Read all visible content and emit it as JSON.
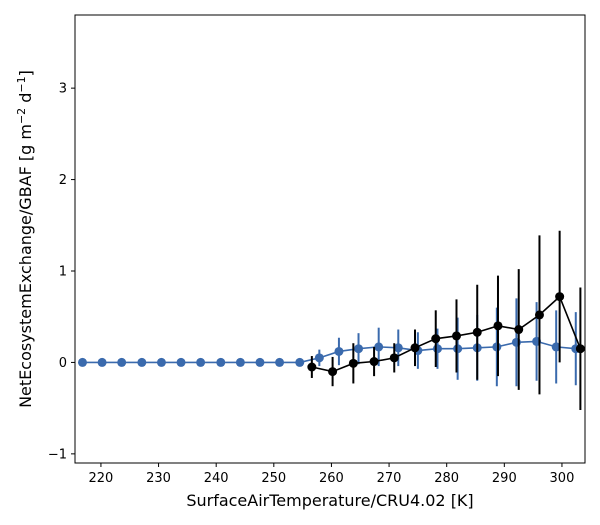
{
  "chart_data": {
    "type": "line",
    "xlabel": "SurfaceAirTemperature/CRU4.02 [K]",
    "ylabel_main": "NetEcosystemExchange/GBAF [g m",
    "ylabel_sup1": "−2",
    "ylabel_mid": " d",
    "ylabel_sup2": "−1",
    "ylabel_end": "]",
    "xlim": [
      215.5,
      304.0
    ],
    "ylim": [
      -1.1,
      3.8
    ],
    "xticks": [
      220,
      230,
      240,
      250,
      260,
      270,
      280,
      290,
      300
    ],
    "yticks": [
      -1,
      0,
      1,
      2,
      3
    ],
    "grid": false,
    "series": [
      {
        "color": "#3a6aad",
        "x": [
          216.8,
          220.2,
          223.6,
          227.1,
          230.5,
          233.9,
          237.3,
          240.8,
          244.2,
          247.6,
          251.0,
          254.5,
          257.9,
          261.3,
          264.7,
          268.2,
          271.6,
          275.0,
          278.4,
          281.9,
          285.3,
          288.7,
          292.1,
          295.6,
          299.0,
          302.4
        ],
        "y": [
          0,
          0,
          0,
          0,
          0,
          0,
          0,
          0,
          0,
          0,
          0,
          0,
          0.05,
          0.12,
          0.15,
          0.17,
          0.16,
          0.13,
          0.15,
          0.15,
          0.16,
          0.17,
          0.22,
          0.23,
          0.17,
          0.15
        ],
        "err": [
          0,
          0,
          0,
          0,
          0,
          0,
          0,
          0,
          0,
          0,
          0,
          0,
          0.09,
          0.15,
          0.17,
          0.21,
          0.2,
          0.2,
          0.22,
          0.34,
          0.36,
          0.43,
          0.48,
          0.43,
          0.4,
          0.4
        ]
      },
      {
        "color": "#000000",
        "x": [
          256.6,
          260.2,
          263.8,
          267.4,
          270.9,
          274.5,
          278.1,
          281.7,
          285.3,
          288.9,
          292.5,
          296.1,
          299.6,
          303.2
        ],
        "y": [
          -0.05,
          -0.1,
          -0.01,
          0.01,
          0.05,
          0.16,
          0.26,
          0.29,
          0.33,
          0.4,
          0.36,
          0.52,
          0.72,
          0.15
        ],
        "err": [
          0.12,
          0.16,
          0.22,
          0.16,
          0.16,
          0.2,
          0.31,
          0.4,
          0.52,
          0.55,
          0.66,
          0.87,
          0.72,
          0.67
        ]
      }
    ]
  }
}
